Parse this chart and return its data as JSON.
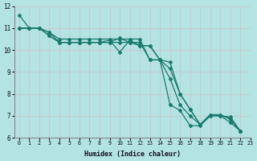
{
  "xlabel": "Humidex (Indice chaleur)",
  "ylabel": "",
  "xlim": [
    -0.5,
    23
  ],
  "ylim": [
    6,
    12
  ],
  "yticks": [
    6,
    7,
    8,
    9,
    10,
    11,
    12
  ],
  "xticks": [
    0,
    1,
    2,
    3,
    4,
    5,
    6,
    7,
    8,
    9,
    10,
    11,
    12,
    13,
    14,
    15,
    16,
    17,
    18,
    19,
    20,
    21,
    22,
    23
  ],
  "bg_color": "#b3e3e3",
  "grid_major_color": "#c8d4d4",
  "grid_minor_color": "#d4dfdf",
  "line_color": "#1a7a6e",
  "lines": [
    {
      "x": [
        0,
        1,
        2,
        3,
        4,
        5,
        6,
        7,
        8,
        9,
        10,
        11,
        12,
        13,
        14,
        15,
        16,
        17,
        18,
        19,
        20,
        21,
        22
      ],
      "y": [
        11.6,
        11.0,
        11.0,
        10.65,
        10.35,
        10.35,
        10.35,
        10.35,
        10.35,
        10.45,
        9.9,
        10.45,
        10.2,
        10.2,
        9.55,
        7.5,
        7.25,
        6.55,
        6.55,
        7.0,
        7.0,
        6.95,
        6.3
      ]
    },
    {
      "x": [
        0,
        1,
        2,
        3,
        4,
        5,
        6,
        7,
        8,
        9,
        10,
        11,
        12,
        13,
        14,
        15,
        16,
        17,
        18,
        19,
        20,
        21,
        22
      ],
      "y": [
        11.0,
        11.0,
        11.0,
        10.65,
        10.35,
        10.35,
        10.35,
        10.35,
        10.35,
        10.35,
        10.55,
        10.35,
        10.2,
        10.2,
        9.55,
        9.45,
        8.0,
        7.3,
        6.6,
        7.05,
        7.05,
        6.85,
        6.3
      ]
    },
    {
      "x": [
        0,
        1,
        2,
        3,
        4,
        5,
        6,
        7,
        8,
        9,
        10,
        11,
        12,
        13,
        14,
        15,
        16,
        17,
        18,
        19,
        20,
        21,
        22
      ],
      "y": [
        11.0,
        11.0,
        11.0,
        10.8,
        10.35,
        10.35,
        10.35,
        10.35,
        10.35,
        10.35,
        10.35,
        10.35,
        10.35,
        9.55,
        9.55,
        9.15,
        8.0,
        7.3,
        6.6,
        7.05,
        7.05,
        6.85,
        6.3
      ]
    },
    {
      "x": [
        0,
        1,
        2,
        3,
        4,
        5,
        6,
        7,
        8,
        9,
        10,
        11,
        12,
        13,
        14,
        15,
        16,
        17,
        18,
        19,
        20,
        21,
        22
      ],
      "y": [
        11.0,
        11.0,
        11.0,
        10.8,
        10.5,
        10.5,
        10.5,
        10.5,
        10.5,
        10.5,
        10.5,
        10.5,
        10.5,
        9.55,
        9.55,
        8.7,
        7.5,
        7.0,
        6.6,
        7.0,
        7.0,
        6.7,
        6.3
      ]
    }
  ]
}
